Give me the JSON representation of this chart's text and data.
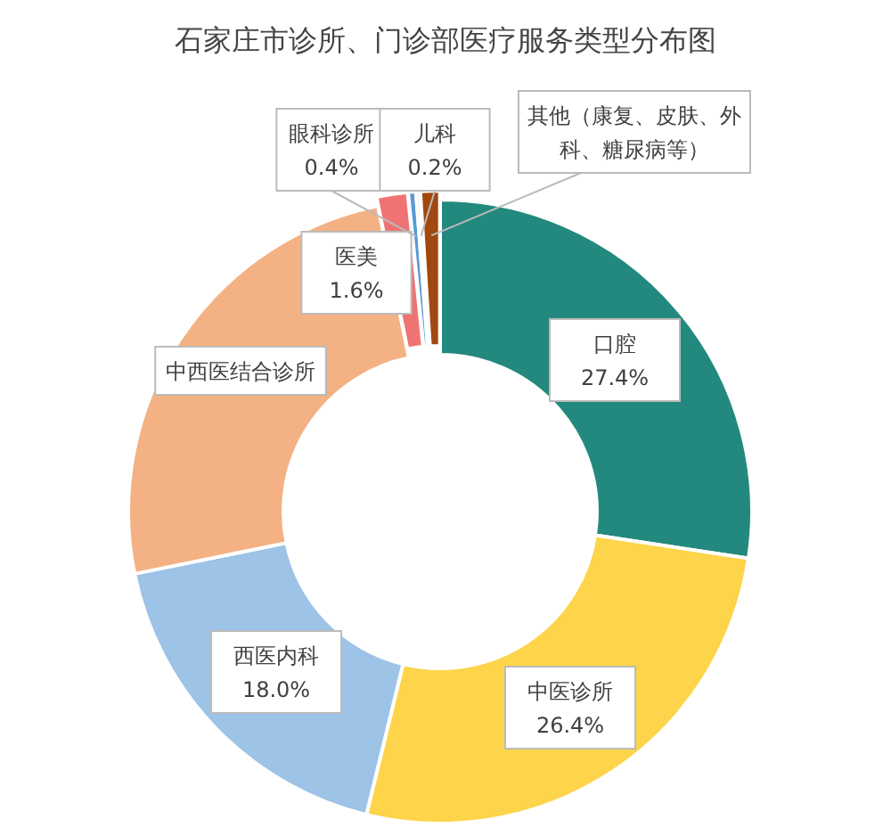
{
  "chart_data": {
    "type": "donut",
    "title": "石家庄市诊所、门诊部医疗服务类型分布图",
    "categories": [
      "口腔",
      "中医诊所",
      "西医内科",
      "中西医结合诊所",
      "医美",
      "眼科诊所",
      "儿科",
      "其他（康复、皮肤、外科、糖尿病等）"
    ],
    "values": [
      27.4,
      26.4,
      18.0,
      25.0,
      1.6,
      0.4,
      0.2,
      1.0
    ],
    "colors": [
      "#23897e",
      "#fdd44a",
      "#9dc3e6",
      "#f4b183",
      "#f07373",
      "#5b9bd5",
      "#d9d9d9",
      "#a0480f"
    ],
    "value_labels": [
      "27.4%",
      "26.4%",
      "18.0%",
      null,
      "1.6%",
      "0.4%",
      "0.2%",
      null
    ],
    "legend": false
  }
}
